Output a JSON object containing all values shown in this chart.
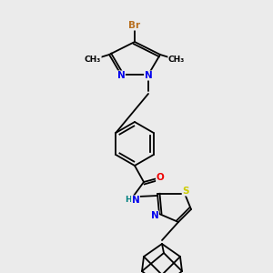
{
  "bg_color": "#ebebeb",
  "bond_color": "#000000",
  "atom_colors": {
    "Br": "#b87020",
    "N": "#0000ee",
    "O": "#ee0000",
    "S": "#cccc00",
    "H": "#008080",
    "C": "#000000"
  }
}
